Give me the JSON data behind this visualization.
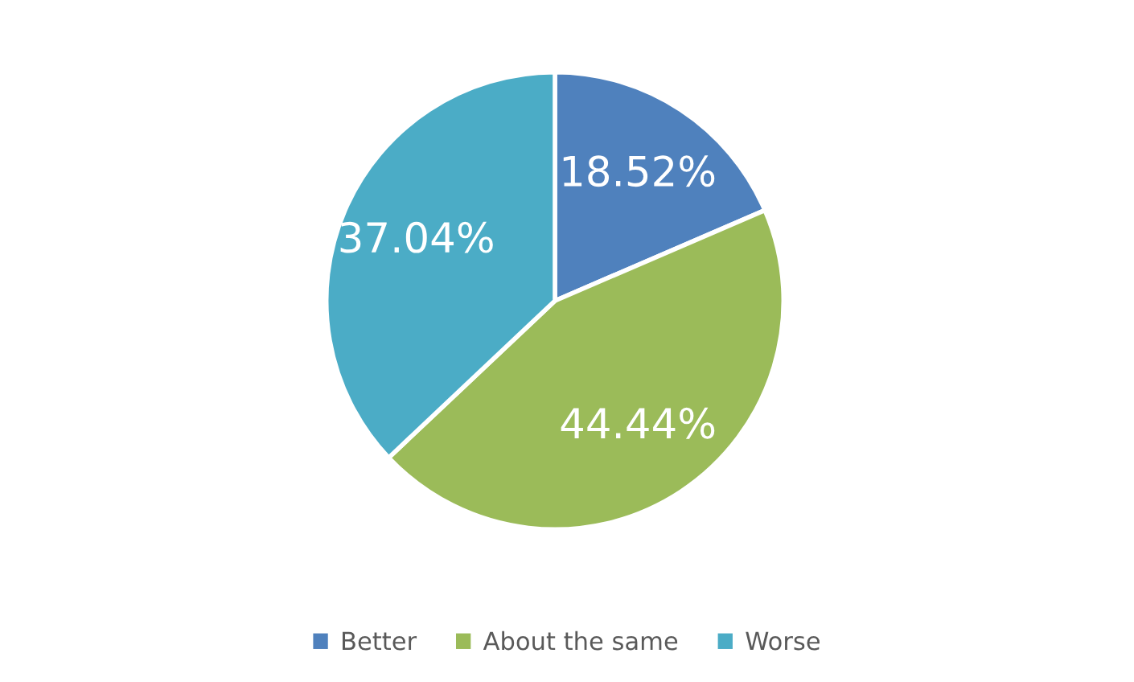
{
  "chart_data": {
    "type": "pie",
    "categories": [
      "Better",
      "About the same",
      "Worse"
    ],
    "values": [
      18.52,
      44.44,
      37.04
    ],
    "colors": [
      "#4f81bd",
      "#9bbb59",
      "#4bacc6"
    ],
    "value_labels": [
      "18.52%",
      "44.44%",
      "37.04%"
    ],
    "legend": "bottom"
  }
}
